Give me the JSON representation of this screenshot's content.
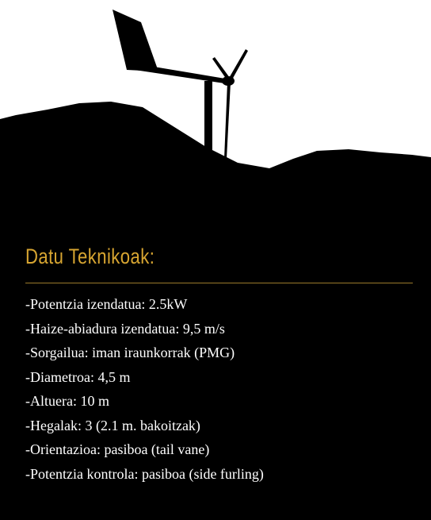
{
  "heading": "Datu Teknikoak:",
  "specs": [
    "-Potentzia izendatua: 2.5kW",
    "-Haize-abiadura izendatua: 9,5 m/s",
    "-Sorgailua: iman iraunkorrak (PMG)",
    "-Diametroa: 4,5 m",
    "-Altuera: 10 m",
    "-Hegalak: 3 (2.1 m. bakoitzak)",
    "-Orientazioa: pasiboa (tail vane)",
    "-Potentzia kontrola: pasiboa (side furling)"
  ]
}
